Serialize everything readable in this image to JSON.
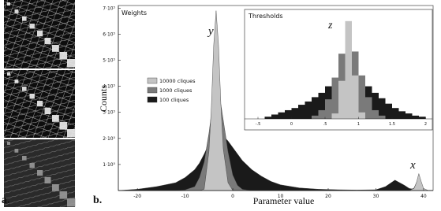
{
  "panel_labels": [
    "a.",
    "b."
  ],
  "chart_data": [
    {
      "type": "area",
      "title": "Weights",
      "xlabel": "Parameter value",
      "ylabel": "Counts",
      "annotations": [
        "y",
        "x"
      ],
      "x": [
        -24,
        -20,
        -16,
        -12,
        -10,
        -8,
        -7,
        -6,
        -5,
        -4.5,
        -4,
        -3.5,
        -3,
        -2.5,
        -2,
        -1,
        0,
        1,
        2,
        4,
        6,
        8,
        10,
        14,
        18,
        22,
        26,
        30,
        32,
        34,
        36,
        37,
        38,
        38.5,
        39,
        39.5,
        40,
        41,
        42
      ],
      "series": [
        {
          "name": "10000 cliques",
          "color": "#c4c4c4",
          "values": [
            0,
            0,
            0,
            0,
            0,
            0,
            0,
            5000,
            150000,
            320000,
            560000,
            690000,
            560000,
            330000,
            160000,
            30000,
            0,
            0,
            0,
            0,
            0,
            0,
            0,
            0,
            0,
            0,
            0,
            0,
            0,
            0,
            0,
            0,
            8000,
            30000,
            65000,
            35000,
            8000,
            0,
            0
          ]
        },
        {
          "name": "1000 cliques",
          "color": "#7a7a7a",
          "values": [
            0,
            0,
            0,
            0,
            3000,
            15000,
            50000,
            110000,
            220000,
            290000,
            340000,
            370000,
            360000,
            330000,
            270000,
            150000,
            60000,
            20000,
            5000,
            0,
            0,
            0,
            0,
            0,
            0,
            0,
            0,
            0,
            0,
            0,
            0,
            0,
            10000,
            30000,
            50000,
            25000,
            5000,
            0,
            0
          ]
        },
        {
          "name": "100 cliques",
          "color": "#1a1a1a",
          "values": [
            0,
            5000,
            15000,
            30000,
            50000,
            80000,
            105000,
            140000,
            180000,
            200000,
            215000,
            225000,
            225000,
            220000,
            210000,
            190000,
            165000,
            140000,
            115000,
            80000,
            55000,
            35000,
            22000,
            10000,
            5000,
            3000,
            2000,
            3000,
            15000,
            40000,
            20000,
            8000,
            5000,
            15000,
            30000,
            15000,
            3000,
            0,
            0
          ]
        }
      ],
      "xlim": [
        -24,
        42
      ],
      "xticks": [
        -20,
        -10,
        0,
        10,
        20,
        30,
        40
      ],
      "ylim": [
        0,
        710000
      ],
      "yticks": [
        {
          "value": 100000,
          "label": "1·10⁵"
        },
        {
          "value": 200000,
          "label": "2·10⁵"
        },
        {
          "value": 300000,
          "label": "3·10⁵"
        },
        {
          "value": 400000,
          "label": "4·10⁵"
        },
        {
          "value": 500000,
          "label": "5·10⁵"
        },
        {
          "value": 600000,
          "label": "6·10⁵"
        },
        {
          "value": 700000,
          "label": "7·10⁵"
        }
      ],
      "legend": "center left"
    },
    {
      "type": "histogram",
      "title": "Thresholds",
      "annotations": [
        "z"
      ],
      "bins": [
        -0.4,
        -0.3,
        -0.2,
        -0.1,
        0.0,
        0.1,
        0.2,
        0.3,
        0.4,
        0.5,
        0.6,
        0.7,
        0.8,
        0.9,
        1.0,
        1.1,
        1.2,
        1.3,
        1.4,
        1.5,
        1.6,
        1.7,
        1.8,
        1.9,
        2.0
      ],
      "series": [
        {
          "color": "#c4c4c4",
          "values": [
            0,
            0,
            0,
            0,
            0,
            0,
            0,
            0,
            0,
            0,
            5,
            35,
            90,
            40,
            6,
            0,
            0,
            0,
            0,
            0,
            0,
            0,
            0,
            0
          ]
        },
        {
          "color": "#7a7a7a",
          "values": [
            0,
            0,
            0,
            0,
            0,
            0,
            0,
            3,
            8,
            18,
            38,
            60,
            70,
            62,
            40,
            20,
            8,
            3,
            0,
            0,
            0,
            0,
            0,
            0
          ]
        },
        {
          "color": "#1a1a1a",
          "values": [
            2,
            4,
            6,
            8,
            10,
            13,
            16,
            20,
            24,
            30,
            36,
            42,
            45,
            42,
            36,
            30,
            24,
            19,
            14,
            10,
            7,
            5,
            3,
            2
          ]
        }
      ],
      "xlim": [
        -0.7,
        2.1
      ],
      "xticks": [
        {
          "value": -0.5,
          "label": "-.5"
        },
        0,
        {
          "value": 0.5,
          "label": ".5"
        },
        1,
        1.5,
        2
      ],
      "ylim": [
        0,
        100
      ]
    }
  ]
}
